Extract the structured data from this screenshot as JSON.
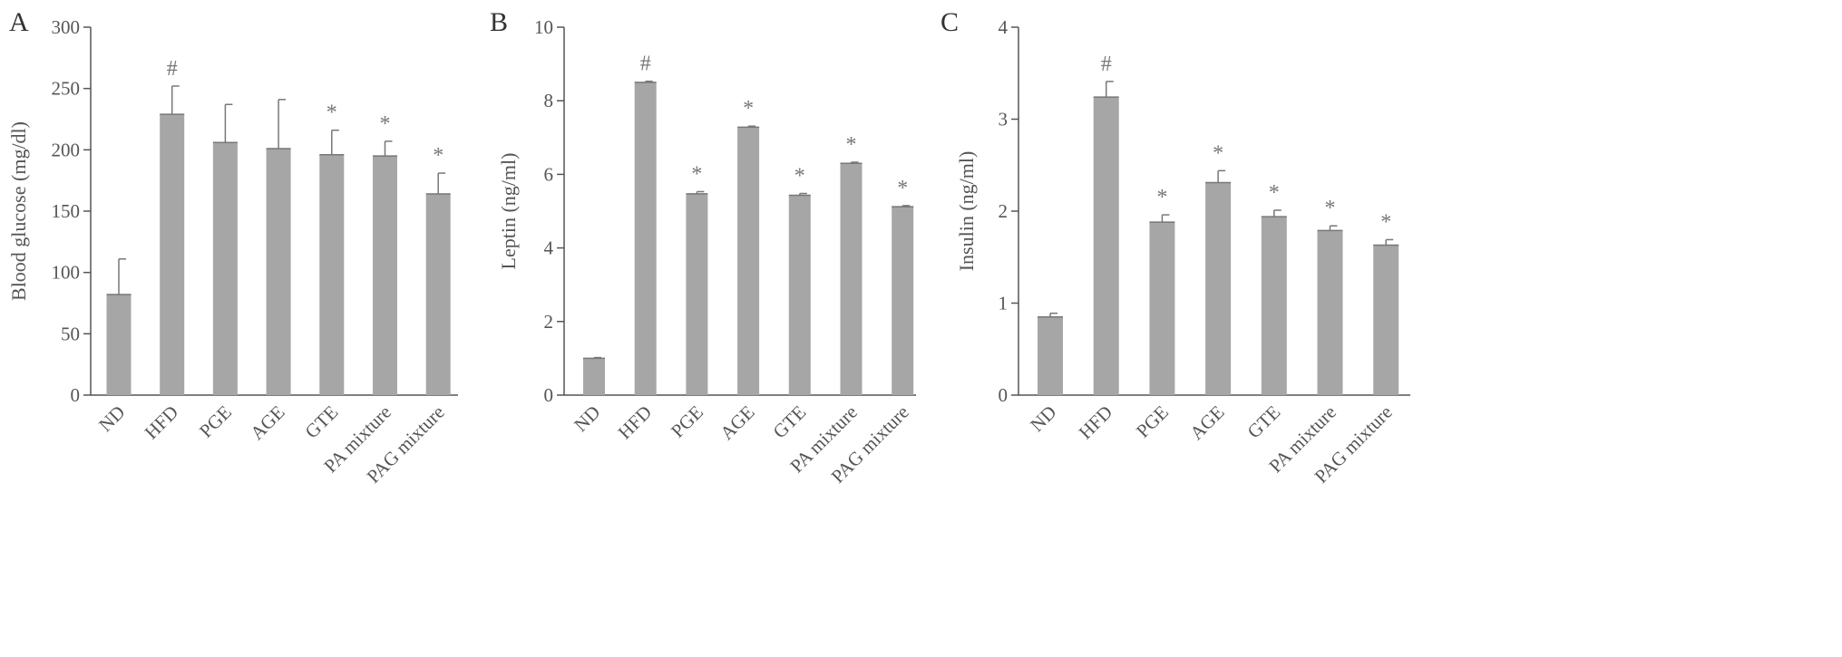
{
  "chart_data": [
    {
      "type": "bar",
      "panel_label": "A",
      "ylabel": "Blood glucose (mg/dl)",
      "xlabel": "",
      "ylim": [
        0,
        300
      ],
      "yticks": [
        0,
        50,
        100,
        150,
        200,
        250,
        300
      ],
      "categories": [
        "ND",
        "HFD",
        "PGE",
        "AGE",
        "GTE",
        "PA mixture",
        "PAG mixture"
      ],
      "values": [
        82,
        229,
        206,
        201,
        196,
        195,
        164
      ],
      "errors": [
        29,
        23,
        31,
        40,
        20,
        12,
        17
      ],
      "annotations": [
        "",
        "#",
        "",
        "",
        "*",
        "*",
        "*"
      ],
      "bar_color": "#a6a6a6"
    },
    {
      "type": "bar",
      "panel_label": "B",
      "ylabel": "Leptin (ng/ml)",
      "xlabel": "",
      "ylim": [
        0,
        10
      ],
      "yticks": [
        0,
        2,
        4,
        6,
        8,
        10
      ],
      "categories": [
        "ND",
        "HFD",
        "PGE",
        "AGE",
        "GTE",
        "PA mixture",
        "PAG mixture"
      ],
      "values": [
        1.0,
        8.5,
        5.47,
        7.28,
        5.43,
        6.3,
        5.12
      ],
      "errors": [
        0.02,
        0.03,
        0.06,
        0.03,
        0.05,
        0.03,
        0.03
      ],
      "annotations": [
        "",
        "#",
        "*",
        "*",
        "*",
        "*",
        "*"
      ],
      "bar_color": "#a6a6a6"
    },
    {
      "type": "bar",
      "panel_label": "C",
      "ylabel": "Insulin (ng/ml)",
      "xlabel": "",
      "ylim": [
        0,
        4
      ],
      "yticks": [
        0,
        1,
        2,
        3,
        4
      ],
      "categories": [
        "ND",
        "HFD",
        "PGE",
        "AGE",
        "GTE",
        "PA mixture",
        "PAG mixture"
      ],
      "values": [
        0.85,
        3.24,
        1.88,
        2.31,
        1.94,
        1.79,
        1.63
      ],
      "errors": [
        0.04,
        0.17,
        0.08,
        0.13,
        0.07,
        0.05,
        0.06
      ],
      "annotations": [
        "",
        "#",
        "*",
        "*",
        "*",
        "*",
        "*"
      ],
      "bar_color": "#a6a6a6"
    }
  ]
}
